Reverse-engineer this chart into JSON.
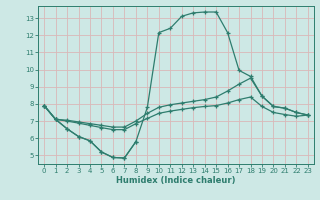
{
  "xlabel": "Humidex (Indice chaleur)",
  "xlim": [
    -0.5,
    23.5
  ],
  "ylim": [
    4.5,
    13.7
  ],
  "yticks": [
    5,
    6,
    7,
    8,
    9,
    10,
    11,
    12,
    13
  ],
  "xticks": [
    0,
    1,
    2,
    3,
    4,
    5,
    6,
    7,
    8,
    9,
    10,
    11,
    12,
    13,
    14,
    15,
    16,
    17,
    18,
    19,
    20,
    21,
    22,
    23
  ],
  "bg_color": "#cde8e5",
  "line_color": "#2e7d6e",
  "grid_color": "#dab8b8",
  "lines": [
    {
      "x": [
        0,
        1,
        2,
        3,
        4,
        5,
        6,
        7,
        8,
        9,
        10,
        11,
        12,
        13,
        14,
        15,
        16,
        17,
        18,
        19,
        20,
        21,
        22,
        23
      ],
      "y": [
        7.9,
        7.1,
        6.55,
        6.1,
        5.85,
        5.2,
        4.88,
        4.85,
        5.8,
        7.8,
        12.15,
        12.4,
        13.1,
        13.3,
        13.35,
        13.35,
        12.15,
        9.95,
        9.6,
        8.45,
        7.85,
        7.75,
        7.5,
        7.35
      ]
    },
    {
      "x": [
        0,
        1,
        2,
        3,
        4,
        5,
        6,
        7,
        8,
        9,
        10,
        11,
        12,
        13,
        14,
        15,
        16,
        17,
        18,
        19,
        20,
        21,
        22,
        23
      ],
      "y": [
        7.9,
        7.1,
        7.05,
        6.95,
        6.85,
        6.75,
        6.65,
        6.65,
        7.0,
        7.45,
        7.8,
        7.95,
        8.05,
        8.15,
        8.25,
        8.4,
        8.75,
        9.15,
        9.5,
        8.45,
        7.85,
        7.75,
        7.5,
        7.35
      ]
    },
    {
      "x": [
        0,
        1,
        2,
        3,
        4,
        5,
        6,
        7,
        8,
        9,
        10,
        11,
        12,
        13,
        14,
        15,
        16,
        17,
        18,
        19,
        20,
        21,
        22,
        23
      ],
      "y": [
        7.9,
        7.1,
        7.0,
        6.88,
        6.75,
        6.62,
        6.5,
        6.5,
        6.85,
        7.15,
        7.45,
        7.58,
        7.68,
        7.78,
        7.85,
        7.9,
        8.05,
        8.25,
        8.4,
        7.85,
        7.5,
        7.38,
        7.28,
        7.35
      ]
    },
    {
      "x": [
        0,
        1,
        2,
        3,
        4,
        5,
        6,
        7,
        8,
        9
      ],
      "y": [
        7.9,
        7.1,
        6.55,
        6.1,
        5.85,
        5.2,
        4.88,
        4.85,
        5.8,
        null
      ]
    }
  ]
}
